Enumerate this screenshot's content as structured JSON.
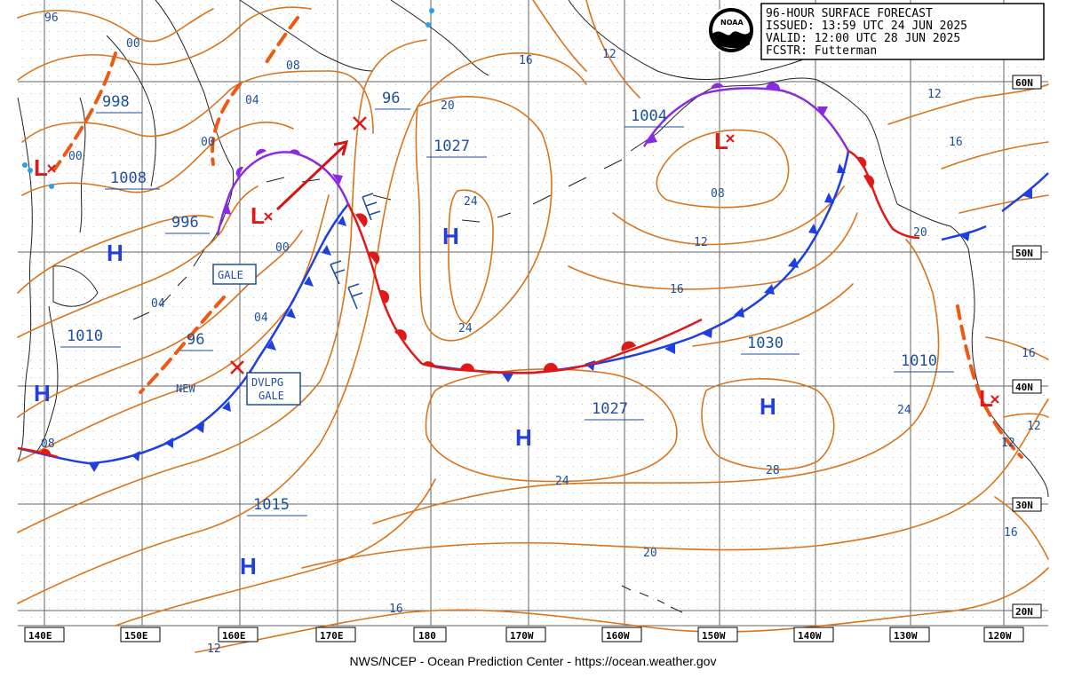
{
  "title_block": {
    "line1": "96-HOUR SURFACE FORECAST",
    "line2": "ISSUED: 13:59 UTC 24 JUN 2025",
    "line3": "VALID:  12:00 UTC 28 JUN 2025",
    "line4": "FCSTR:  Futterman",
    "logo_text": "NOAA"
  },
  "credit": "NWS/NCEP - Ocean Prediction Center - https://ocean.weather.gov",
  "lon_labels": [
    "140E",
    "150E",
    "160E",
    "170E",
    "180",
    "170W",
    "160W",
    "150W",
    "140W",
    "130W",
    "120W"
  ],
  "lat_labels": [
    "60N",
    "50N",
    "40N",
    "30N",
    "20N"
  ],
  "pressure_boxes": [
    "998",
    "1008",
    "996",
    "1010",
    "96",
    "96",
    "1027",
    "1004",
    "1030",
    "1027",
    "1010",
    "1015"
  ],
  "isobar_labels": [
    "96",
    "00",
    "08",
    "04",
    "00",
    "00",
    "00",
    "04",
    "04",
    "08",
    "16",
    "12",
    "20",
    "24",
    "24",
    "24",
    "08",
    "12",
    "16",
    "28",
    "20",
    "16",
    "12",
    "16",
    "16",
    "12",
    "12",
    "24",
    "20",
    "16",
    "16",
    "12"
  ],
  "highs": [
    "H",
    "H",
    "H",
    "H",
    "H",
    "H"
  ],
  "lows": [
    "L",
    "L",
    "L",
    "L"
  ],
  "warning_boxes": [
    "GALE",
    "DVLPG",
    "GALE"
  ],
  "tags": {
    "new": "NEW"
  },
  "colors": {
    "isobar": "#d9741c",
    "grid": "#666666",
    "cold_front": "#1f3fe0",
    "warm_front": "#e01818",
    "occluded_front": "#8a2be2",
    "trough": "#ee5a14",
    "coast": "#222222",
    "label_blue": "#1d4f9c",
    "low_red": "#e01818",
    "high_blue": "#1f3fe0"
  }
}
